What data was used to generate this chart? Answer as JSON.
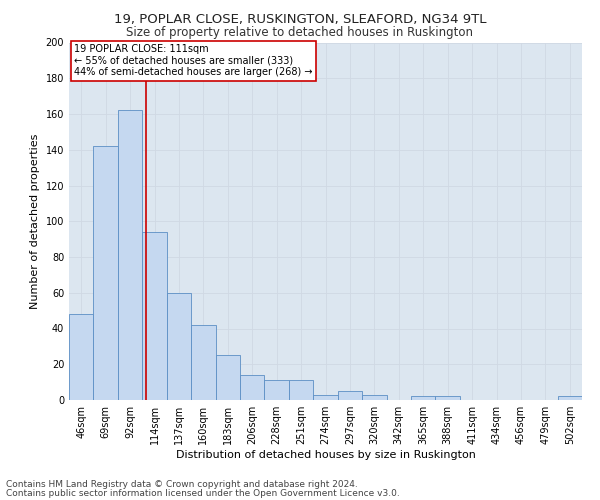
{
  "title1": "19, POPLAR CLOSE, RUSKINGTON, SLEAFORD, NG34 9TL",
  "title2": "Size of property relative to detached houses in Ruskington",
  "xlabel": "Distribution of detached houses by size in Ruskington",
  "ylabel": "Number of detached properties",
  "bin_labels": [
    "46sqm",
    "69sqm",
    "92sqm",
    "114sqm",
    "137sqm",
    "160sqm",
    "183sqm",
    "206sqm",
    "228sqm",
    "251sqm",
    "274sqm",
    "297sqm",
    "320sqm",
    "342sqm",
    "365sqm",
    "388sqm",
    "411sqm",
    "434sqm",
    "456sqm",
    "479sqm",
    "502sqm"
  ],
  "bar_heights": [
    48,
    142,
    162,
    94,
    60,
    42,
    25,
    14,
    11,
    11,
    3,
    5,
    3,
    0,
    2,
    2,
    0,
    0,
    0,
    0,
    2
  ],
  "bar_color": "#c5d8f0",
  "bar_edgecolor": "#5b8ec4",
  "vline_x": 2.65,
  "vline_color": "#cc0000",
  "annotation_text": "19 POPLAR CLOSE: 111sqm\n← 55% of detached houses are smaller (333)\n44% of semi-detached houses are larger (268) →",
  "annotation_box_color": "#ffffff",
  "annotation_box_edgecolor": "#cc0000",
  "ylim": [
    0,
    200
  ],
  "yticks": [
    0,
    20,
    40,
    60,
    80,
    100,
    120,
    140,
    160,
    180,
    200
  ],
  "grid_color": "#d0d8e4",
  "bg_color": "#dce6f0",
  "fig_color": "#ffffff",
  "footer1": "Contains HM Land Registry data © Crown copyright and database right 2024.",
  "footer2": "Contains public sector information licensed under the Open Government Licence v3.0.",
  "title1_fontsize": 9.5,
  "title2_fontsize": 8.5,
  "xlabel_fontsize": 8,
  "ylabel_fontsize": 8,
  "tick_fontsize": 7,
  "annotation_fontsize": 7,
  "footer_fontsize": 6.5
}
